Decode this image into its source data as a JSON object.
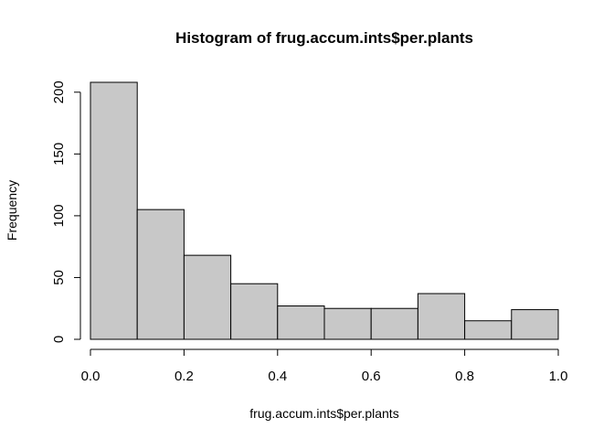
{
  "chart_data": {
    "type": "bar",
    "title": "Histogram of frug.accum.ints$per.plants",
    "xlabel": "frug.accum.ints$per.plants",
    "ylabel": "Frequency",
    "bins": [
      {
        "start": 0.0,
        "end": 0.1,
        "count": 208
      },
      {
        "start": 0.1,
        "end": 0.2,
        "count": 105
      },
      {
        "start": 0.2,
        "end": 0.3,
        "count": 68
      },
      {
        "start": 0.3,
        "end": 0.4,
        "count": 45
      },
      {
        "start": 0.4,
        "end": 0.5,
        "count": 27
      },
      {
        "start": 0.5,
        "end": 0.6,
        "count": 25
      },
      {
        "start": 0.6,
        "end": 0.7,
        "count": 25
      },
      {
        "start": 0.7,
        "end": 0.8,
        "count": 37
      },
      {
        "start": 0.8,
        "end": 0.9,
        "count": 15
      },
      {
        "start": 0.9,
        "end": 1.0,
        "count": 24
      }
    ],
    "xlim": [
      0,
      1
    ],
    "ylim": [
      0,
      208
    ],
    "x_ticks": [
      "0.0",
      "0.2",
      "0.4",
      "0.6",
      "0.8",
      "1.0"
    ],
    "y_ticks": [
      "0",
      "50",
      "100",
      "150",
      "200"
    ],
    "grid": false,
    "legend": "none",
    "colors": {
      "bar_fill": "#c8c8c8",
      "bar_stroke": "#000000"
    }
  }
}
